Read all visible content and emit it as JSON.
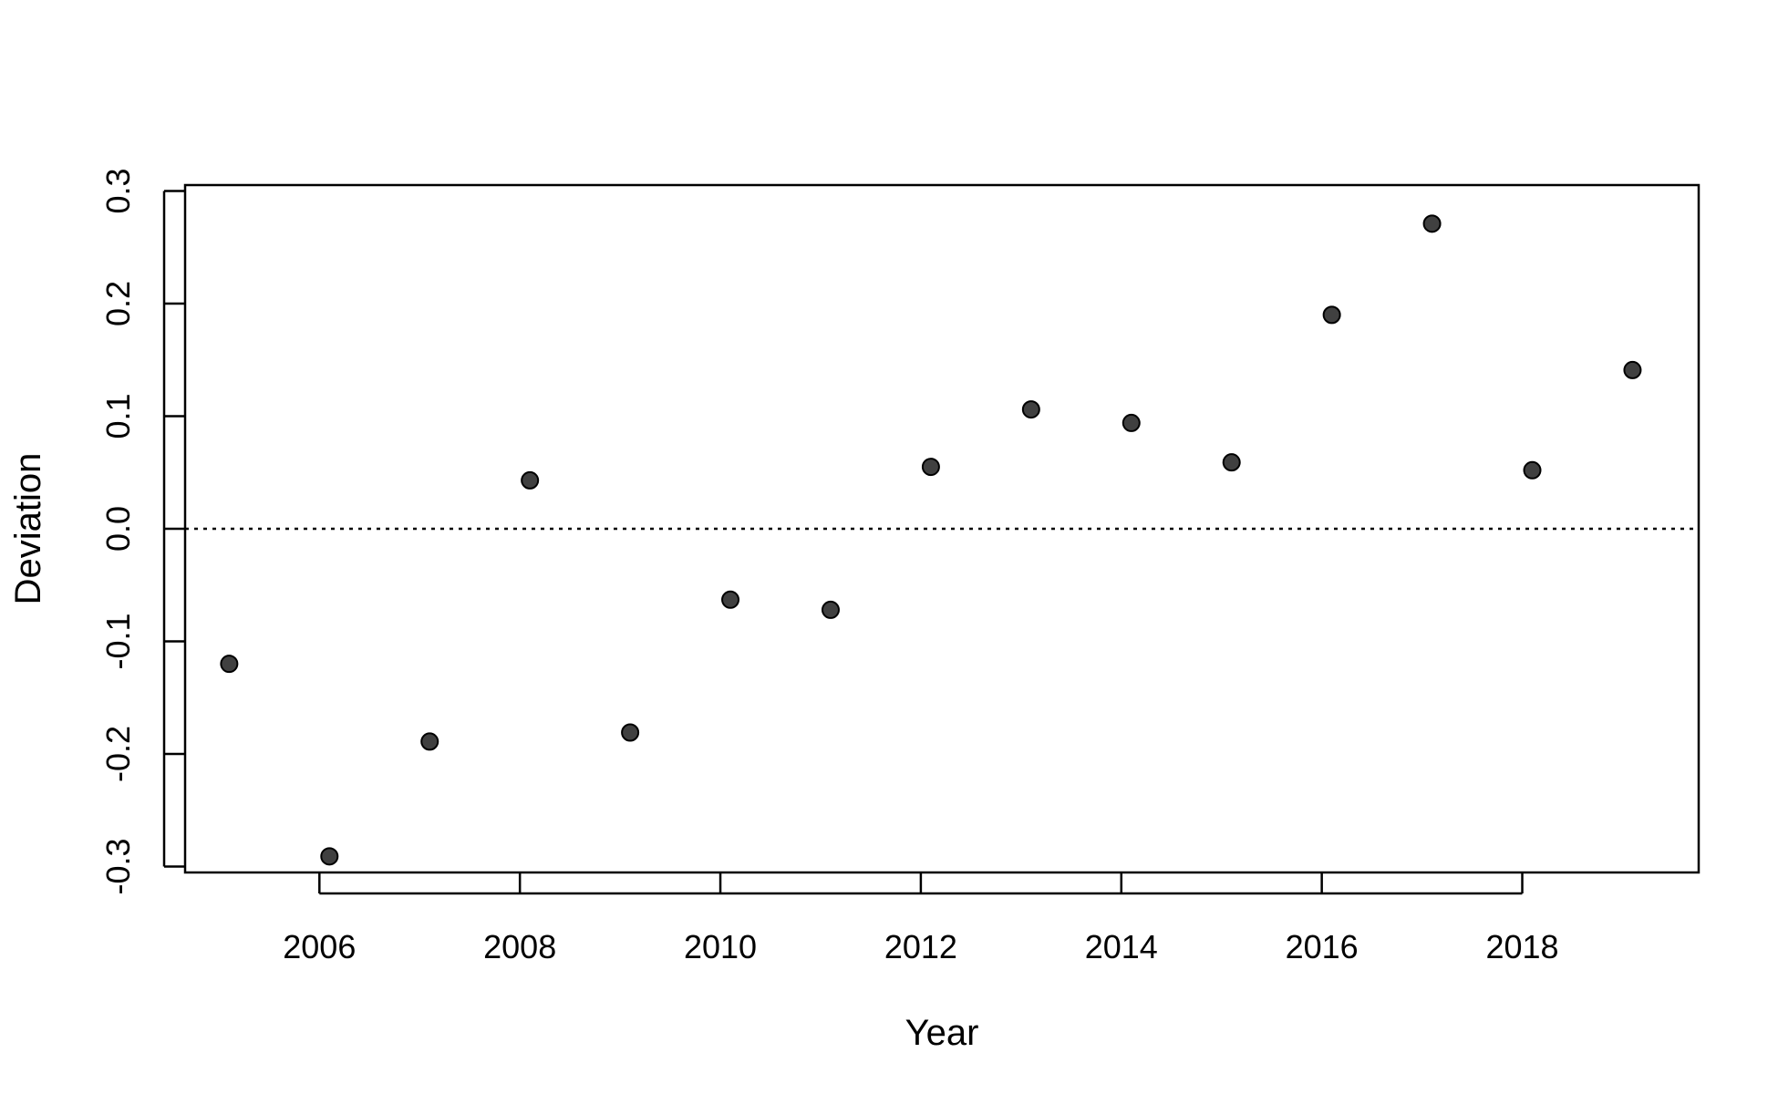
{
  "chart_data": {
    "type": "scatter",
    "title": "",
    "xlabel": "Year",
    "ylabel": "Deviation",
    "xlim": [
      2004.66,
      2019.76
    ],
    "ylim": [
      -0.3053,
      0.3053
    ],
    "x_ticks": [
      2006,
      2008,
      2010,
      2012,
      2014,
      2016,
      2018
    ],
    "y_ticks": [
      -0.3,
      -0.2,
      -0.1,
      0.0,
      0.1,
      0.2,
      0.3
    ],
    "y_tick_labels": [
      "-0.3",
      "-0.2",
      "-0.1",
      "0.0",
      "0.1",
      "0.2",
      "0.3"
    ],
    "reference_line": {
      "y": 0.0,
      "style": "dotted"
    },
    "grid": false,
    "legend": "none",
    "point_color": "#404040",
    "points": [
      {
        "x": 2005.1,
        "y": -0.12
      },
      {
        "x": 2006.1,
        "y": -0.291
      },
      {
        "x": 2007.1,
        "y": -0.189
      },
      {
        "x": 2008.1,
        "y": 0.043
      },
      {
        "x": 2009.1,
        "y": -0.181
      },
      {
        "x": 2010.1,
        "y": -0.063
      },
      {
        "x": 2011.1,
        "y": -0.072
      },
      {
        "x": 2012.1,
        "y": 0.055
      },
      {
        "x": 2013.1,
        "y": 0.106
      },
      {
        "x": 2014.1,
        "y": 0.094
      },
      {
        "x": 2015.1,
        "y": 0.059
      },
      {
        "x": 2016.1,
        "y": 0.19
      },
      {
        "x": 2017.1,
        "y": 0.271
      },
      {
        "x": 2018.1,
        "y": 0.052
      },
      {
        "x": 2019.1,
        "y": 0.141
      }
    ]
  }
}
